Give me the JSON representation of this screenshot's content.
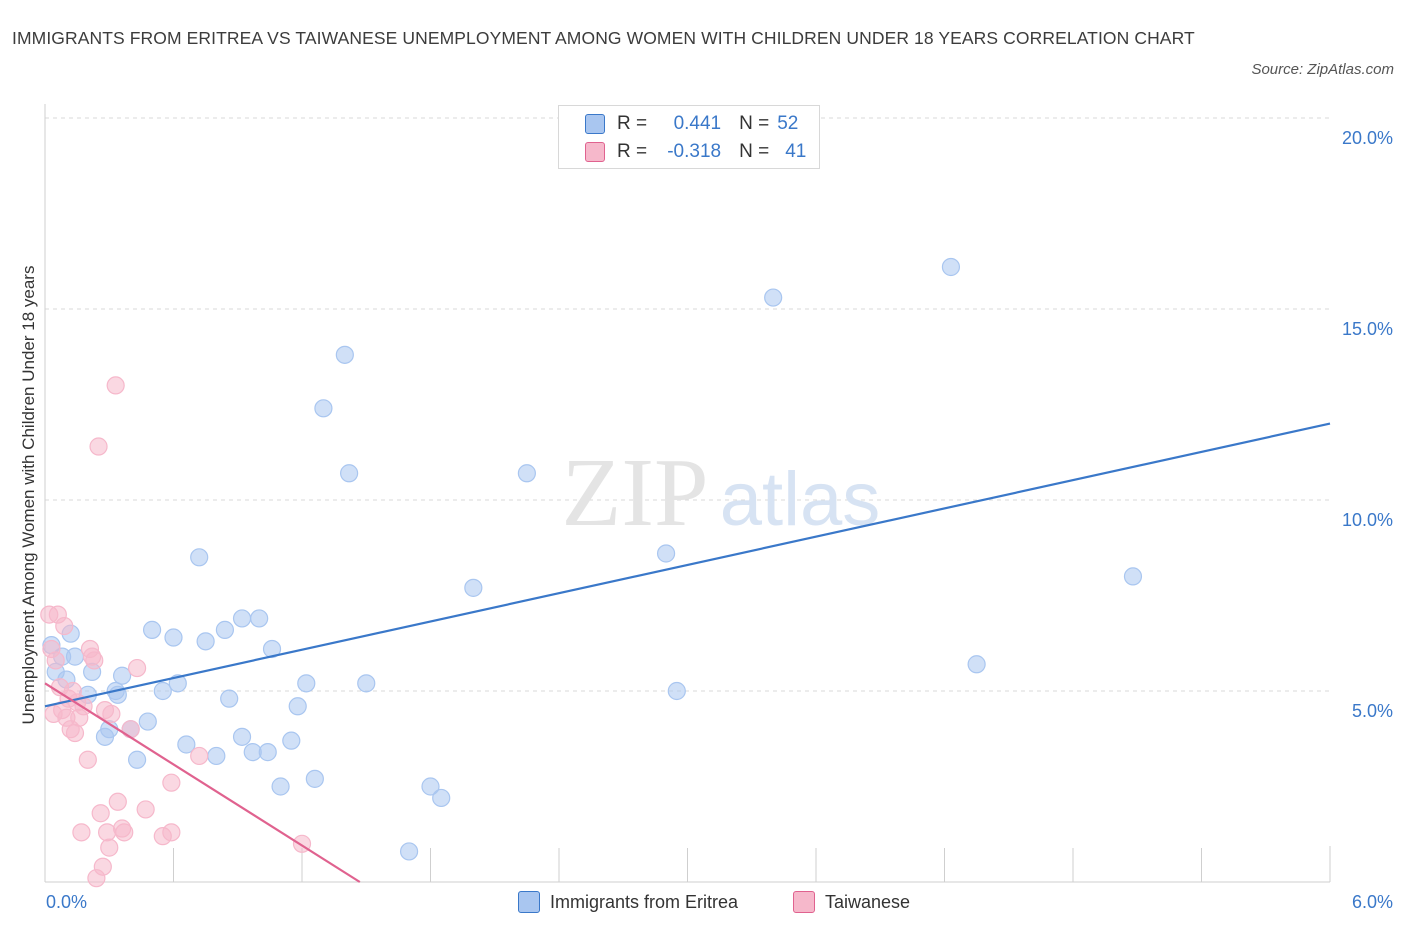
{
  "title": "IMMIGRANTS FROM ERITREA VS TAIWANESE UNEMPLOYMENT AMONG WOMEN WITH CHILDREN UNDER 18 YEARS CORRELATION CHART",
  "source": "Source: ZipAtlas.com",
  "watermark": {
    "zip": "ZIP",
    "atlas": "atlas"
  },
  "legend": {
    "rows": [
      {
        "r_label": "R =",
        "r_value": "0.441",
        "n_label": "N =",
        "n_value": "52",
        "color": "#a9c6f0"
      },
      {
        "r_label": "R =",
        "r_value": "-0.318",
        "n_label": "N =",
        "n_value": "41",
        "color": "#f6b8cb"
      }
    ]
  },
  "colors": {
    "blue": "#3a78c9",
    "blue_fill": "#a9c6f0",
    "pink": "#e0628f",
    "pink_fill": "#f6b8cb",
    "axis_text": "#3a78c9",
    "grid": "#d9d9d9"
  },
  "chart_data": {
    "type": "scatter",
    "title": "IMMIGRANTS FROM ERITREA VS TAIWANESE UNEMPLOYMENT AMONG WOMEN WITH CHILDREN UNDER 18 YEARS CORRELATION CHART",
    "xlabel": "",
    "ylabel": "Unemployment Among Women with Children Under 18 years",
    "xlim": [
      0,
      6
    ],
    "ylim": [
      0,
      20
    ],
    "x_tick_labels": [
      "0.0%",
      "6.0%"
    ],
    "y_ticks": [
      5,
      10,
      15,
      20
    ],
    "y_tick_labels": [
      "5.0%",
      "10.0%",
      "15.0%",
      "20.0%"
    ],
    "grid": true,
    "series": [
      {
        "name": "Immigrants from Eritrea",
        "color": "#3a78c9",
        "trend": {
          "x": [
            0.0,
            6.0
          ],
          "y": [
            4.6,
            12.0
          ]
        },
        "points": [
          [
            0.03,
            6.2
          ],
          [
            0.05,
            5.5
          ],
          [
            0.08,
            5.9
          ],
          [
            0.1,
            5.3
          ],
          [
            0.12,
            6.5
          ],
          [
            0.2,
            4.9
          ],
          [
            0.22,
            5.5
          ],
          [
            0.28,
            3.8
          ],
          [
            0.3,
            4.0
          ],
          [
            0.33,
            5.0
          ],
          [
            0.36,
            5.4
          ],
          [
            0.4,
            4.0
          ],
          [
            0.43,
            3.2
          ],
          [
            0.48,
            4.2
          ],
          [
            0.5,
            6.6
          ],
          [
            0.55,
            5.0
          ],
          [
            0.6,
            6.4
          ],
          [
            0.62,
            5.2
          ],
          [
            0.66,
            3.6
          ],
          [
            0.72,
            8.5
          ],
          [
            0.75,
            6.3
          ],
          [
            0.8,
            3.3
          ],
          [
            0.84,
            6.6
          ],
          [
            0.86,
            4.8
          ],
          [
            0.92,
            3.8
          ],
          [
            0.92,
            6.9
          ],
          [
            0.97,
            3.4
          ],
          [
            1.0,
            6.9
          ],
          [
            1.04,
            3.4
          ],
          [
            1.06,
            6.1
          ],
          [
            1.1,
            2.5
          ],
          [
            1.15,
            3.7
          ],
          [
            1.18,
            4.6
          ],
          [
            1.22,
            5.2
          ],
          [
            1.26,
            2.7
          ],
          [
            1.3,
            12.4
          ],
          [
            1.4,
            13.8
          ],
          [
            1.42,
            10.7
          ],
          [
            1.5,
            5.2
          ],
          [
            1.7,
            0.8
          ],
          [
            1.8,
            2.5
          ],
          [
            1.85,
            2.2
          ],
          [
            2.0,
            7.7
          ],
          [
            2.25,
            10.7
          ],
          [
            2.9,
            8.6
          ],
          [
            2.95,
            5.0
          ],
          [
            3.4,
            15.3
          ],
          [
            4.23,
            16.1
          ],
          [
            4.35,
            5.7
          ],
          [
            5.08,
            8.0
          ],
          [
            0.14,
            5.9
          ],
          [
            0.34,
            4.9
          ]
        ]
      },
      {
        "name": "Taiwanese",
        "color": "#e0628f",
        "trend": {
          "x": [
            0.0,
            1.47
          ],
          "y": [
            5.2,
            0.0
          ]
        },
        "points": [
          [
            0.02,
            7.0
          ],
          [
            0.03,
            6.1
          ],
          [
            0.04,
            4.4
          ],
          [
            0.05,
            5.8
          ],
          [
            0.06,
            7.0
          ],
          [
            0.07,
            5.1
          ],
          [
            0.08,
            4.5
          ],
          [
            0.09,
            6.7
          ],
          [
            0.1,
            4.3
          ],
          [
            0.11,
            4.8
          ],
          [
            0.12,
            4.0
          ],
          [
            0.13,
            5.0
          ],
          [
            0.14,
            3.9
          ],
          [
            0.15,
            4.7
          ],
          [
            0.16,
            4.3
          ],
          [
            0.17,
            1.3
          ],
          [
            0.18,
            4.6
          ],
          [
            0.2,
            3.2
          ],
          [
            0.21,
            6.1
          ],
          [
            0.22,
            5.9
          ],
          [
            0.23,
            5.8
          ],
          [
            0.24,
            0.1
          ],
          [
            0.25,
            11.4
          ],
          [
            0.26,
            1.8
          ],
          [
            0.27,
            0.4
          ],
          [
            0.28,
            4.5
          ],
          [
            0.29,
            1.3
          ],
          [
            0.3,
            0.9
          ],
          [
            0.31,
            4.4
          ],
          [
            0.33,
            13.0
          ],
          [
            0.34,
            2.1
          ],
          [
            0.36,
            1.4
          ],
          [
            0.37,
            1.3
          ],
          [
            0.4,
            4.0
          ],
          [
            0.43,
            5.6
          ],
          [
            0.47,
            1.9
          ],
          [
            0.55,
            1.2
          ],
          [
            0.59,
            1.3
          ],
          [
            0.59,
            2.6
          ],
          [
            0.72,
            3.3
          ],
          [
            1.2,
            1.0
          ]
        ]
      }
    ]
  },
  "bottom_legend": [
    {
      "label": "Immigrants from Eritrea",
      "color": "#a9c6f0"
    },
    {
      "label": "Taiwanese",
      "color": "#f6b8cb"
    }
  ]
}
